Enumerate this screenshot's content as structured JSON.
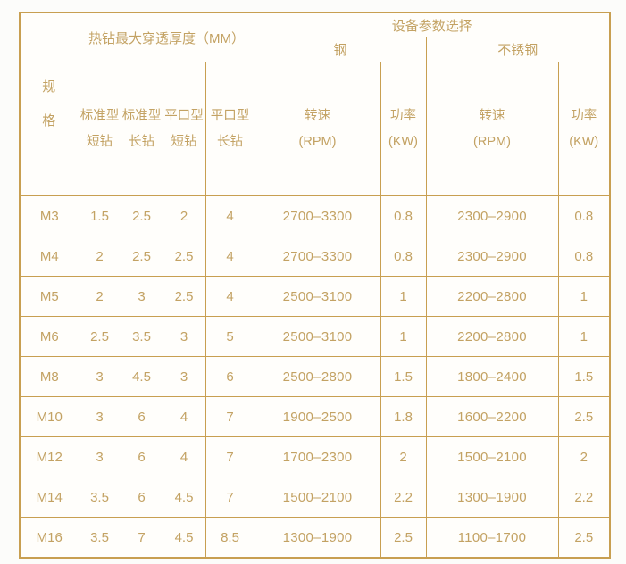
{
  "header": {
    "spec_label": "规\n格",
    "thickness_title": "热钻最大穿透厚度（MM）",
    "device_title": "设备参数选择",
    "steel_label": "钢",
    "stainless_label": "不锈钢",
    "sub_columns": [
      "标准型\n短钻",
      "标准型\n长钻",
      "平口型\n短钻",
      "平口型\n长钻",
      "转速\n(RPM)",
      "功率\n(KW)",
      "转速\n(RPM)",
      "功率\n(KW)"
    ]
  },
  "rows": [
    {
      "spec": "M3",
      "values": [
        "1.5",
        "2.5",
        "2",
        "4",
        "2700–3300",
        "0.8",
        "2300–2900",
        "0.8"
      ]
    },
    {
      "spec": "M4",
      "values": [
        "2",
        "2.5",
        "2.5",
        "4",
        "2700–3300",
        "0.8",
        "2300–2900",
        "0.8"
      ]
    },
    {
      "spec": "M5",
      "values": [
        "2",
        "3",
        "2.5",
        "4",
        "2500–3100",
        "1",
        "2200–2800",
        "1"
      ]
    },
    {
      "spec": "M6",
      "values": [
        "2.5",
        "3.5",
        "3",
        "5",
        "2500–3100",
        "1",
        "2200–2800",
        "1"
      ]
    },
    {
      "spec": "M8",
      "values": [
        "3",
        "4.5",
        "3",
        "6",
        "2500–2800",
        "1.5",
        "1800–2400",
        "1.5"
      ]
    },
    {
      "spec": "M10",
      "values": [
        "3",
        "6",
        "4",
        "7",
        "1900–2500",
        "1.8",
        "1600–2200",
        "2.5"
      ]
    },
    {
      "spec": "M12",
      "values": [
        "3",
        "6",
        "4",
        "7",
        "1700–2300",
        "2",
        "1500–2100",
        "2"
      ]
    },
    {
      "spec": "M14",
      "values": [
        "3.5",
        "6",
        "4.5",
        "7",
        "1500–2100",
        "2.2",
        "1300–1900",
        "2.2"
      ]
    },
    {
      "spec": "M16",
      "values": [
        "3.5",
        "7",
        "4.5",
        "8.5",
        "1300–1900",
        "2.5",
        "1100–1700",
        "2.5"
      ]
    }
  ],
  "colors": {
    "gold_text": "#c3a263",
    "gold_border": "#c89f51",
    "cell_background": "#fffefb",
    "page_background": "#fcfcfa"
  }
}
